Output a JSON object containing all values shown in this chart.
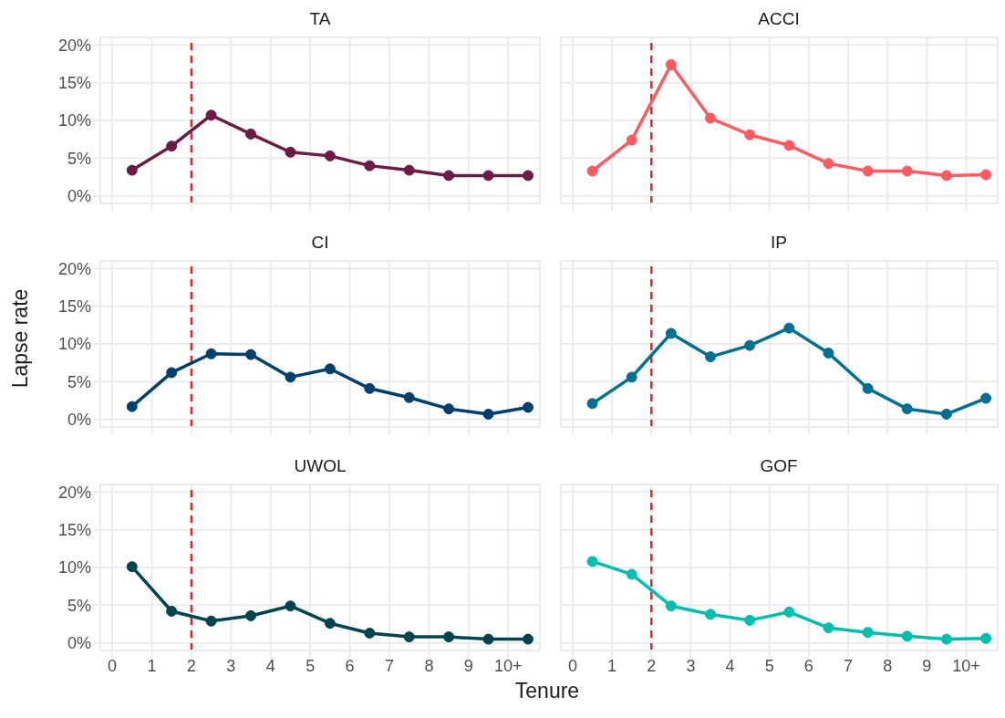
{
  "chart_data": [
    {
      "type": "line",
      "title": "TA",
      "x": [
        0.5,
        1.5,
        2.5,
        3.5,
        4.5,
        5.5,
        6.5,
        7.5,
        8.5,
        9.5,
        10.5
      ],
      "values": [
        3.4,
        6.6,
        10.7,
        8.2,
        5.8,
        5.3,
        4.0,
        3.4,
        2.7,
        2.7,
        2.7
      ],
      "color": "#6d1a44",
      "xlim": [
        -0.3,
        10.8
      ],
      "xticks": [
        0,
        1,
        2,
        3,
        4,
        5,
        6,
        7,
        8,
        9,
        10
      ],
      "ylim": [
        -1,
        21
      ],
      "yticks": [
        {
          "value": 0,
          "label": "0%"
        },
        {
          "value": 5,
          "label": "5%"
        },
        {
          "value": 10,
          "label": "10%"
        },
        {
          "value": 15,
          "label": "15%"
        },
        {
          "value": 20,
          "label": "20%"
        }
      ],
      "ref_lines": [
        {
          "axis": "x",
          "value": 2,
          "color": "#e8262a",
          "line_style": "dashed"
        }
      ],
      "grid": true,
      "marker": "circle",
      "tick_labels": "y"
    },
    {
      "type": "line",
      "title": "ACCI",
      "x": [
        0.5,
        1.5,
        2.5,
        3.5,
        4.5,
        5.5,
        6.5,
        7.5,
        8.5,
        9.5,
        10.5
      ],
      "values": [
        3.3,
        7.4,
        17.4,
        10.3,
        8.1,
        6.7,
        4.3,
        3.3,
        3.3,
        2.7,
        2.8
      ],
      "color": "#ff5a5f",
      "xlim": [
        -0.3,
        10.8
      ],
      "xticks": [
        0,
        1,
        2,
        3,
        4,
        5,
        6,
        7,
        8,
        9,
        10
      ],
      "ylim": [
        -1,
        21
      ],
      "yticks": [
        0,
        5,
        10,
        15,
        20
      ],
      "ref_lines": [
        {
          "axis": "x",
          "value": 2,
          "color": "#e8262a",
          "line_style": "dashed"
        }
      ],
      "grid": true,
      "marker": "circle",
      "tick_labels": false
    },
    {
      "type": "line",
      "title": "CI",
      "ylabel": "Lapse rate",
      "x": [
        0.5,
        1.5,
        2.5,
        3.5,
        4.5,
        5.5,
        6.5,
        7.5,
        8.5,
        9.5,
        10.5
      ],
      "values": [
        1.7,
        6.2,
        8.7,
        8.6,
        5.6,
        6.7,
        4.1,
        2.9,
        1.4,
        0.7,
        1.6
      ],
      "color": "#003f6e",
      "xlim": [
        -0.3,
        10.8
      ],
      "xticks": [
        0,
        1,
        2,
        3,
        4,
        5,
        6,
        7,
        8,
        9,
        10
      ],
      "ylim": [
        -1,
        21
      ],
      "yticks": [
        {
          "value": 0,
          "label": "0%"
        },
        {
          "value": 5,
          "label": "5%"
        },
        {
          "value": 10,
          "label": "10%"
        },
        {
          "value": 15,
          "label": "15%"
        },
        {
          "value": 20,
          "label": "20%"
        }
      ],
      "ref_lines": [
        {
          "axis": "x",
          "value": 2,
          "color": "#e8262a",
          "line_style": "dashed"
        }
      ],
      "grid": true,
      "marker": "circle",
      "tick_labels": "y"
    },
    {
      "type": "line",
      "title": "IP",
      "x": [
        0.5,
        1.5,
        2.5,
        3.5,
        4.5,
        5.5,
        6.5,
        7.5,
        8.5,
        9.5,
        10.5
      ],
      "values": [
        2.1,
        5.6,
        11.4,
        8.3,
        9.8,
        12.1,
        8.8,
        4.1,
        1.4,
        0.7,
        2.8
      ],
      "color": "#006f94",
      "xlim": [
        -0.3,
        10.8
      ],
      "xticks": [
        0,
        1,
        2,
        3,
        4,
        5,
        6,
        7,
        8,
        9,
        10
      ],
      "ylim": [
        -1,
        21
      ],
      "yticks": [
        0,
        5,
        10,
        15,
        20
      ],
      "ref_lines": [
        {
          "axis": "x",
          "value": 2,
          "color": "#e8262a",
          "line_style": "dashed"
        }
      ],
      "grid": true,
      "marker": "circle",
      "tick_labels": false
    },
    {
      "type": "line",
      "title": "UWOL",
      "xlabel": "Tenure",
      "x": [
        0.5,
        1.5,
        2.5,
        3.5,
        4.5,
        5.5,
        6.5,
        7.5,
        8.5,
        9.5,
        10.5
      ],
      "values": [
        10.1,
        4.2,
        2.9,
        3.6,
        4.9,
        2.6,
        1.3,
        0.8,
        0.8,
        0.5,
        0.5
      ],
      "color": "#004450",
      "xlim": [
        -0.3,
        10.8
      ],
      "xticks": [
        0,
        1,
        2,
        3,
        4,
        5,
        6,
        7,
        8,
        9,
        {
          "value": 10,
          "label": "10+"
        }
      ],
      "ylim": [
        -1,
        21
      ],
      "yticks": [
        {
          "value": 0,
          "label": "0%"
        },
        {
          "value": 5,
          "label": "5%"
        },
        {
          "value": 10,
          "label": "10%"
        },
        {
          "value": 15,
          "label": "15%"
        },
        {
          "value": 20,
          "label": "20%"
        }
      ],
      "ref_lines": [
        {
          "axis": "x",
          "value": 2,
          "color": "#e8262a",
          "line_style": "dashed"
        }
      ],
      "grid": true,
      "marker": "circle"
    },
    {
      "type": "line",
      "title": "GOF",
      "x": [
        0.5,
        1.5,
        2.5,
        3.5,
        4.5,
        5.5,
        6.5,
        7.5,
        8.5,
        9.5,
        10.5
      ],
      "values": [
        10.8,
        9.1,
        4.9,
        3.8,
        3.0,
        4.1,
        2.0,
        1.4,
        0.9,
        0.5,
        0.6
      ],
      "color": "#00bfae",
      "xlim": [
        -0.3,
        10.8
      ],
      "xticks": [
        0,
        1,
        2,
        3,
        4,
        5,
        6,
        7,
        8,
        9,
        {
          "value": 10,
          "label": "10+"
        }
      ],
      "ylim": [
        -1,
        21
      ],
      "yticks": [
        0,
        5,
        10,
        15,
        20
      ],
      "ref_lines": [
        {
          "axis": "x",
          "value": 2,
          "color": "#e8262a",
          "line_style": "dashed"
        }
      ],
      "grid": true,
      "marker": "circle",
      "tick_labels": "x"
    }
  ]
}
